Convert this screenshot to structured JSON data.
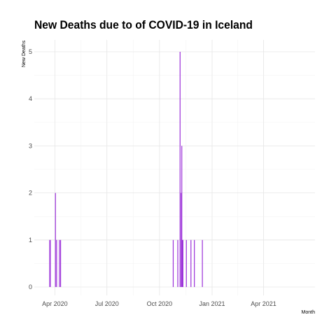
{
  "chart_data": {
    "type": "bar",
    "title": "New Deaths due to of COVID-19 in Iceland",
    "xlabel": "Month",
    "ylabel": "New Deaths",
    "x_range": [
      "2020-02-25",
      "2021-06-30"
    ],
    "ylim": [
      0,
      5
    ],
    "y_ticks": [
      0,
      1,
      2,
      3,
      4,
      5
    ],
    "x_ticks": [
      {
        "date": "2020-04-01",
        "label": "Apr 2020"
      },
      {
        "date": "2020-07-01",
        "label": "Jul 2020"
      },
      {
        "date": "2020-10-01",
        "label": "Oct 2020"
      },
      {
        "date": "2021-01-01",
        "label": "Jan 2021"
      },
      {
        "date": "2021-04-01",
        "label": "Apr 2021"
      }
    ],
    "grid": true,
    "bar_color": "#9b30d9",
    "points": [
      {
        "x": "2020-03-23",
        "y": 1
      },
      {
        "x": "2020-03-24",
        "y": 1
      },
      {
        "x": "2020-04-02",
        "y": 2
      },
      {
        "x": "2020-04-04",
        "y": 1
      },
      {
        "x": "2020-04-09",
        "y": 1
      },
      {
        "x": "2020-04-11",
        "y": 1
      },
      {
        "x": "2020-10-25",
        "y": 1
      },
      {
        "x": "2020-11-02",
        "y": 1
      },
      {
        "x": "2020-11-06",
        "y": 5
      },
      {
        "x": "2020-11-08",
        "y": 2
      },
      {
        "x": "2020-11-09",
        "y": 3
      },
      {
        "x": "2020-11-10",
        "y": 1
      },
      {
        "x": "2020-11-11",
        "y": 1
      },
      {
        "x": "2020-11-17",
        "y": 1
      },
      {
        "x": "2020-11-25",
        "y": 1
      },
      {
        "x": "2020-12-01",
        "y": 1
      },
      {
        "x": "2020-12-15",
        "y": 1
      }
    ]
  }
}
